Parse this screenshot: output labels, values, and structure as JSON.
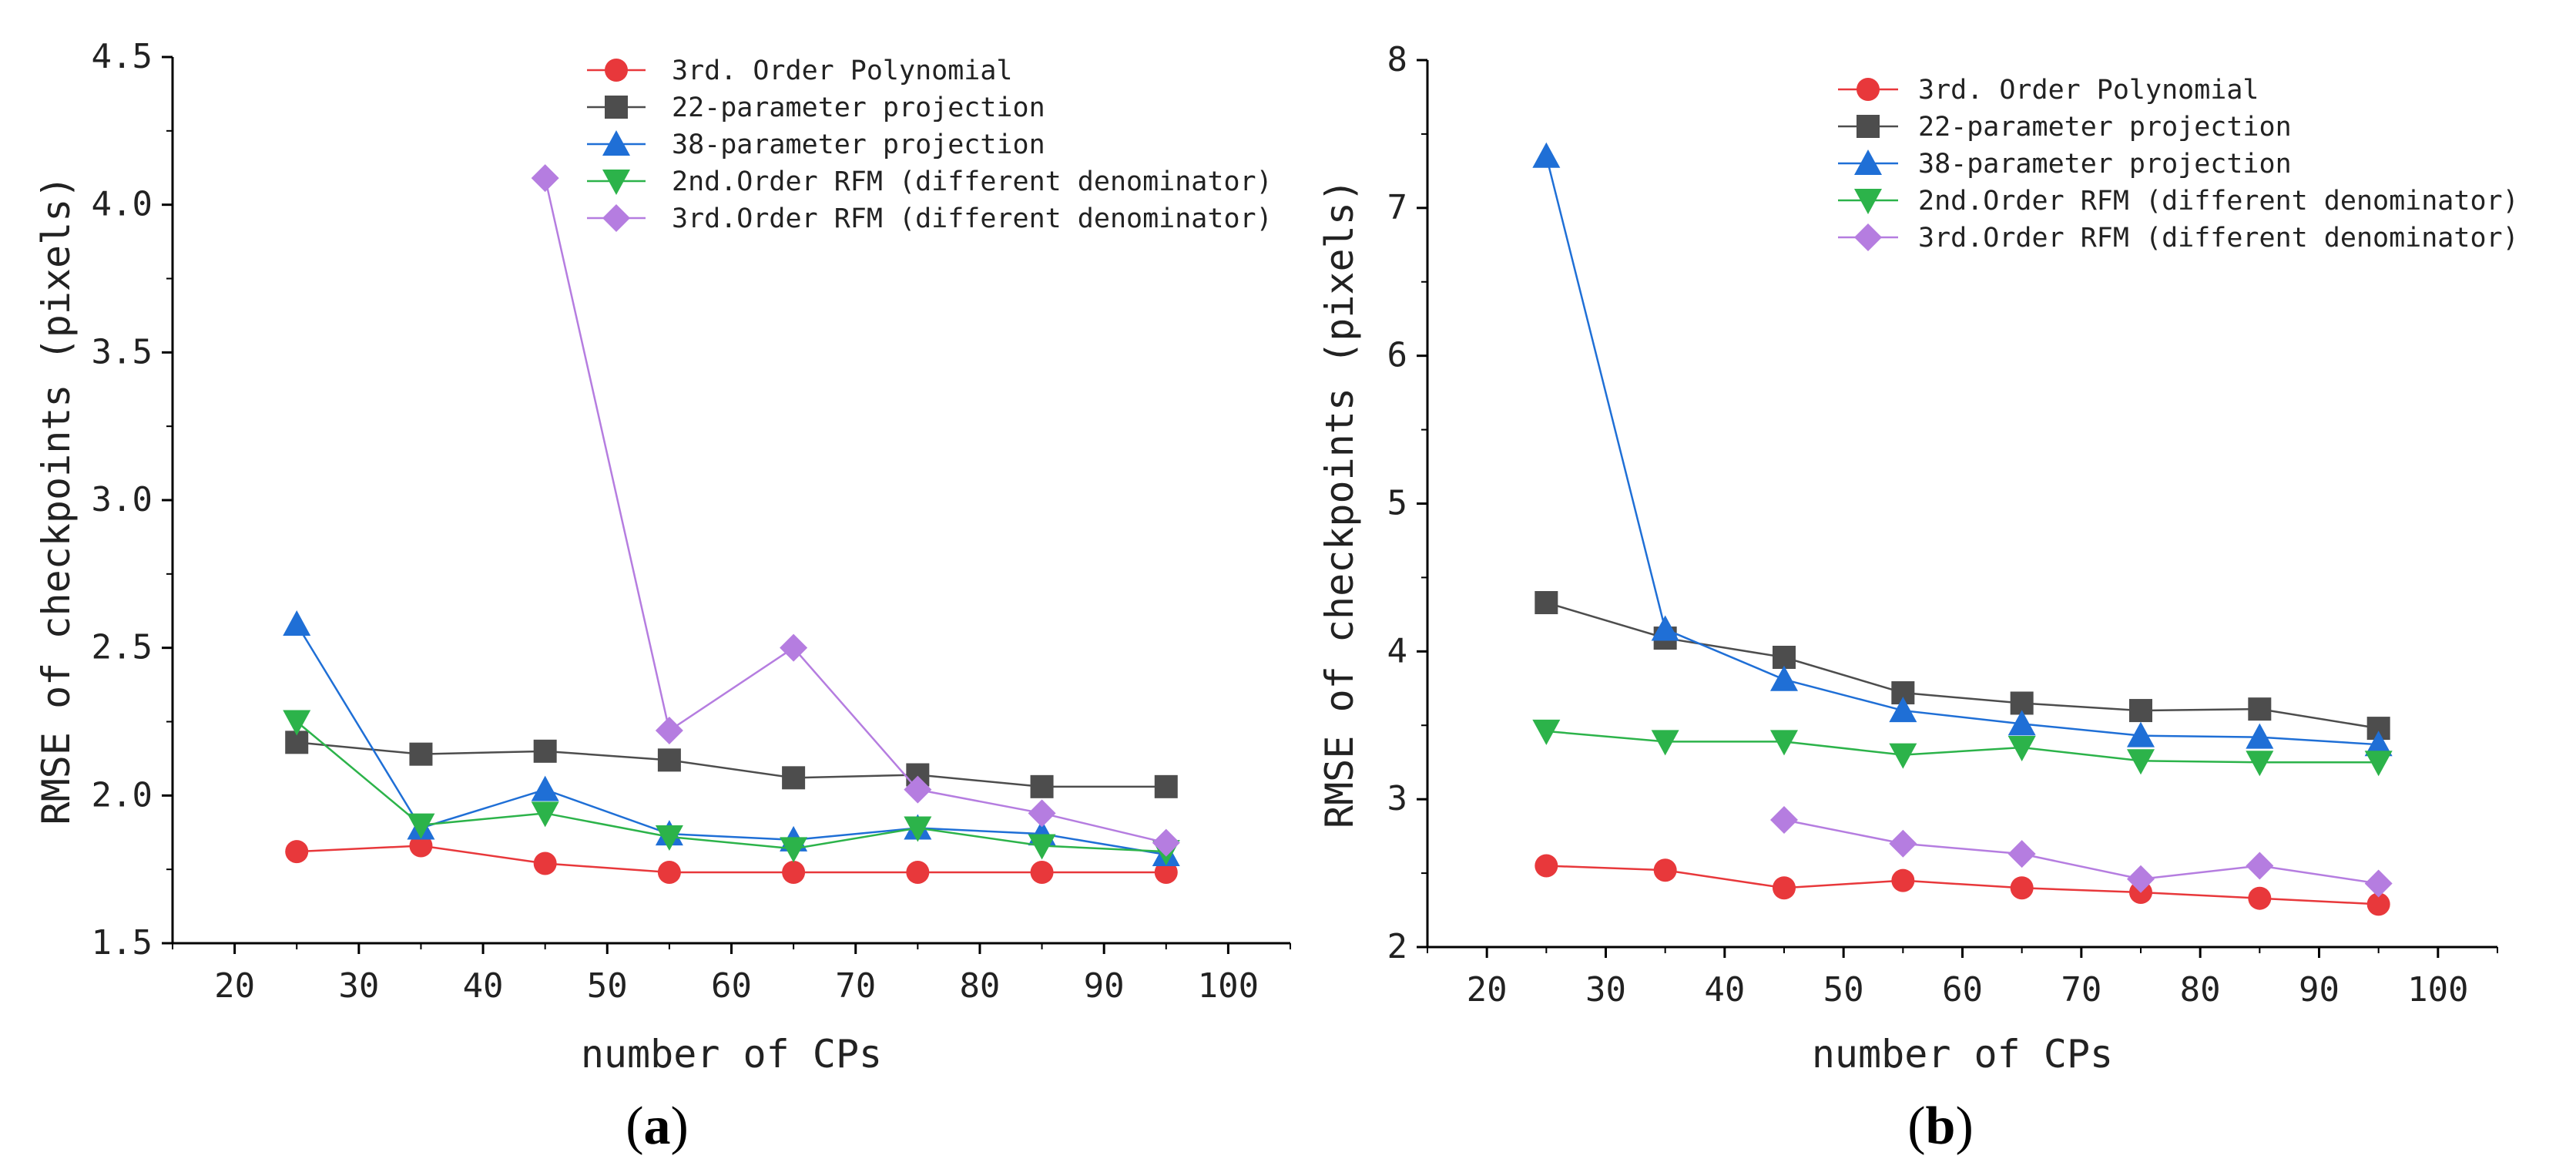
{
  "chart_data": [
    {
      "type": "line",
      "panel_label": "(a)",
      "panel_letter": "a",
      "xlabel": "number of CPs",
      "ylabel": "RMSE of checkpoints (pixels)",
      "xlim": [
        15,
        105
      ],
      "ylim": [
        1.5,
        4.5
      ],
      "xticks": [
        20,
        30,
        40,
        50,
        60,
        70,
        80,
        90,
        100
      ],
      "yticks": [
        "1.5",
        "2.0",
        "2.5",
        "3.0",
        "3.5",
        "4.0",
        "4.5"
      ],
      "legend_position": "top-right",
      "series": [
        {
          "name": "3rd. Order Polynomial",
          "marker": "circle",
          "color": "#e8383b",
          "x": [
            25,
            35,
            45,
            55,
            65,
            75,
            85,
            95
          ],
          "y": [
            1.81,
            1.83,
            1.77,
            1.74,
            1.74,
            1.74,
            1.74,
            1.74
          ]
        },
        {
          "name": "22-parameter projection",
          "marker": "square",
          "color": "#4d4d4d",
          "x": [
            25,
            35,
            45,
            55,
            65,
            75,
            85,
            95
          ],
          "y": [
            2.18,
            2.14,
            2.15,
            2.12,
            2.06,
            2.07,
            2.03,
            2.03
          ]
        },
        {
          "name": "38-parameter projection",
          "marker": "triangle-up",
          "color": "#1f6fd6",
          "x": [
            25,
            35,
            45,
            55,
            65,
            75,
            85,
            95
          ],
          "y": [
            2.58,
            1.89,
            2.02,
            1.87,
            1.85,
            1.89,
            1.87,
            1.8
          ]
        },
        {
          "name": "2nd.Order RFM (different denominator)",
          "marker": "triangle-down",
          "color": "#2cb34a",
          "x": [
            25,
            35,
            45,
            55,
            65,
            75,
            85,
            95
          ],
          "y": [
            2.25,
            1.9,
            1.94,
            1.86,
            1.82,
            1.89,
            1.83,
            1.81
          ]
        },
        {
          "name": "3rd.Order RFM (different denominator)",
          "marker": "diamond",
          "color": "#b57de0",
          "x": [
            45,
            55,
            65,
            75,
            85,
            95
          ],
          "y": [
            4.09,
            2.22,
            2.5,
            2.02,
            1.94,
            1.84
          ]
        }
      ]
    },
    {
      "type": "line",
      "panel_label": "(b)",
      "panel_letter": "b",
      "xlabel": "number of CPs",
      "ylabel": "RMSE of checkpoints (pixels)",
      "xlim": [
        15,
        105
      ],
      "ylim": [
        2,
        8
      ],
      "xticks": [
        20,
        30,
        40,
        50,
        60,
        70,
        80,
        90,
        100
      ],
      "yticks": [
        "2",
        "3",
        "4",
        "5",
        "6",
        "7",
        "8"
      ],
      "legend_position": "top-right",
      "series": [
        {
          "name": "3rd. Order Polynomial",
          "marker": "circle",
          "color": "#e8383b",
          "x": [
            25,
            35,
            45,
            55,
            65,
            75,
            85,
            95
          ],
          "y": [
            2.55,
            2.52,
            2.4,
            2.45,
            2.4,
            2.37,
            2.33,
            2.29
          ]
        },
        {
          "name": "22-parameter projection",
          "marker": "square",
          "color": "#4d4d4d",
          "x": [
            25,
            35,
            45,
            55,
            65,
            75,
            85,
            95
          ],
          "y": [
            4.33,
            4.09,
            3.96,
            3.72,
            3.65,
            3.6,
            3.61,
            3.48
          ]
        },
        {
          "name": "38-parameter projection",
          "marker": "triangle-up",
          "color": "#1f6fd6",
          "x": [
            25,
            35,
            45,
            55,
            65,
            75,
            85,
            95
          ],
          "y": [
            7.35,
            4.15,
            3.81,
            3.6,
            3.51,
            3.43,
            3.42,
            3.37
          ]
        },
        {
          "name": "2nd.Order RFM (different denominator)",
          "marker": "triangle-down",
          "color": "#2cb34a",
          "x": [
            25,
            35,
            45,
            55,
            65,
            75,
            85,
            95
          ],
          "y": [
            3.46,
            3.39,
            3.39,
            3.3,
            3.35,
            3.26,
            3.25,
            3.25
          ]
        },
        {
          "name": "3rd.Order RFM (different denominator)",
          "marker": "diamond",
          "color": "#b57de0",
          "x": [
            45,
            55,
            65,
            75,
            85,
            95
          ],
          "y": [
            2.86,
            2.7,
            2.63,
            2.46,
            2.55,
            2.43
          ]
        }
      ]
    }
  ]
}
